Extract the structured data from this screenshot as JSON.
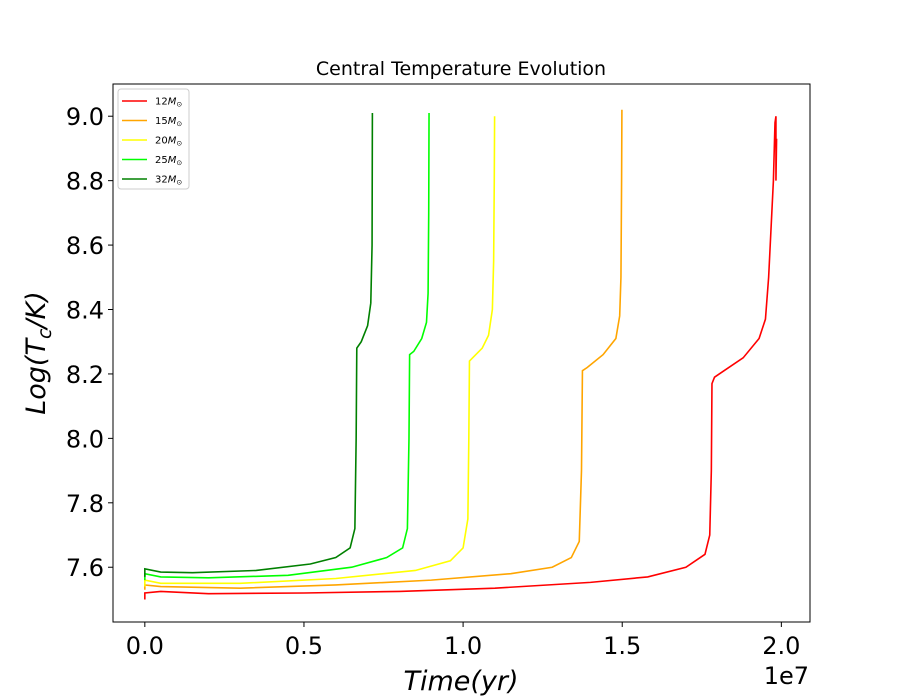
{
  "chart_data": {
    "type": "line",
    "title": "Central Temperature Evolution",
    "xlabel": "Time(yr)",
    "ylabel_main": "Log(T",
    "ylabel_sub": "c",
    "ylabel_tail": "/K)",
    "x_offset_label": "1e7",
    "xlim": [
      -0.1,
      2.09
    ],
    "ylim": [
      7.43,
      9.1
    ],
    "x_ticks": [
      0.0,
      0.5,
      1.0,
      1.5,
      2.0
    ],
    "x_tick_labels": [
      "0.0",
      "0.5",
      "1.0",
      "1.5",
      "2.0"
    ],
    "y_ticks": [
      7.6,
      7.8,
      8.0,
      8.2,
      8.4,
      8.6,
      8.8,
      9.0
    ],
    "y_tick_labels": [
      "7.6",
      "7.8",
      "8.0",
      "8.2",
      "8.4",
      "8.6",
      "8.8",
      "9.0"
    ],
    "grid": false,
    "legend_position": "top-left",
    "series": [
      {
        "name": "12M",
        "mass": "12",
        "sun_symbol": "⊙",
        "color": "#ff0000",
        "points": [
          [
            0,
            7.5
          ],
          [
            0,
            7.52
          ],
          [
            0.05,
            7.525
          ],
          [
            0.2,
            7.518
          ],
          [
            0.5,
            7.52
          ],
          [
            0.8,
            7.525
          ],
          [
            1.1,
            7.535
          ],
          [
            1.4,
            7.553
          ],
          [
            1.58,
            7.57
          ],
          [
            1.7,
            7.6
          ],
          [
            1.76,
            7.64
          ],
          [
            1.775,
            7.7
          ],
          [
            1.78,
            7.9
          ],
          [
            1.782,
            8.17
          ],
          [
            1.79,
            8.19
          ],
          [
            1.82,
            8.21
          ],
          [
            1.88,
            8.25
          ],
          [
            1.93,
            8.31
          ],
          [
            1.95,
            8.37
          ],
          [
            1.96,
            8.5
          ],
          [
            1.975,
            8.8
          ],
          [
            1.98,
            8.98
          ],
          [
            1.983,
            9.0
          ],
          [
            1.983,
            8.8
          ],
          [
            1.985,
            8.93
          ]
        ]
      },
      {
        "name": "15M",
        "mass": "15",
        "sun_symbol": "⊙",
        "color": "#ffa500",
        "points": [
          [
            0,
            7.53
          ],
          [
            0,
            7.545
          ],
          [
            0.05,
            7.54
          ],
          [
            0.3,
            7.535
          ],
          [
            0.6,
            7.545
          ],
          [
            0.9,
            7.56
          ],
          [
            1.15,
            7.58
          ],
          [
            1.28,
            7.6
          ],
          [
            1.34,
            7.63
          ],
          [
            1.365,
            7.68
          ],
          [
            1.372,
            7.9
          ],
          [
            1.375,
            8.21
          ],
          [
            1.39,
            8.22
          ],
          [
            1.44,
            8.26
          ],
          [
            1.48,
            8.31
          ],
          [
            1.492,
            8.38
          ],
          [
            1.496,
            8.5
          ],
          [
            1.498,
            8.8
          ],
          [
            1.499,
            9.02
          ]
        ]
      },
      {
        "name": "20M",
        "mass": "20",
        "sun_symbol": "⊙",
        "color": "#ffff00",
        "points": [
          [
            0,
            7.54
          ],
          [
            0,
            7.56
          ],
          [
            0.05,
            7.55
          ],
          [
            0.3,
            7.55
          ],
          [
            0.6,
            7.565
          ],
          [
            0.85,
            7.59
          ],
          [
            0.96,
            7.62
          ],
          [
            1.0,
            7.66
          ],
          [
            1.015,
            7.75
          ],
          [
            1.018,
            8.0
          ],
          [
            1.02,
            8.24
          ],
          [
            1.03,
            8.25
          ],
          [
            1.06,
            8.28
          ],
          [
            1.08,
            8.32
          ],
          [
            1.092,
            8.4
          ],
          [
            1.096,
            8.55
          ],
          [
            1.098,
            8.8
          ],
          [
            1.099,
            9.0
          ]
        ]
      },
      {
        "name": "25M",
        "mass": "25",
        "sun_symbol": "⊙",
        "color": "#00ff00",
        "points": [
          [
            0,
            7.56
          ],
          [
            0,
            7.58
          ],
          [
            0.05,
            7.57
          ],
          [
            0.2,
            7.567
          ],
          [
            0.45,
            7.575
          ],
          [
            0.65,
            7.6
          ],
          [
            0.76,
            7.63
          ],
          [
            0.81,
            7.66
          ],
          [
            0.825,
            7.72
          ],
          [
            0.83,
            8.0
          ],
          [
            0.832,
            8.26
          ],
          [
            0.845,
            8.27
          ],
          [
            0.87,
            8.31
          ],
          [
            0.885,
            8.36
          ],
          [
            0.89,
            8.45
          ],
          [
            0.892,
            8.7
          ],
          [
            0.893,
            9.01
          ]
        ]
      },
      {
        "name": "32M",
        "mass": "32",
        "sun_symbol": "⊙",
        "color": "#008000",
        "points": [
          [
            0,
            7.57
          ],
          [
            0,
            7.595
          ],
          [
            0.05,
            7.585
          ],
          [
            0.15,
            7.583
          ],
          [
            0.35,
            7.59
          ],
          [
            0.52,
            7.61
          ],
          [
            0.6,
            7.63
          ],
          [
            0.645,
            7.66
          ],
          [
            0.66,
            7.72
          ],
          [
            0.664,
            8.0
          ],
          [
            0.666,
            8.28
          ],
          [
            0.68,
            8.3
          ],
          [
            0.7,
            8.35
          ],
          [
            0.71,
            8.42
          ],
          [
            0.714,
            8.6
          ],
          [
            0.715,
            9.01
          ]
        ]
      }
    ]
  }
}
